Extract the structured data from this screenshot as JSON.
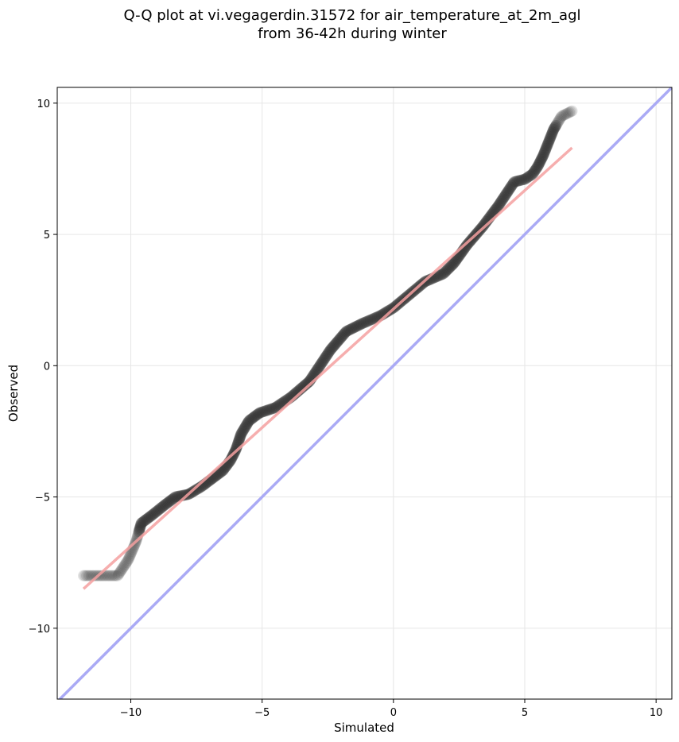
{
  "chart_data": {
    "type": "scatter",
    "title": "Q-Q plot at vi.vegagerdin.31572 for air_temperature_at_2m_agl",
    "subtitle": "from 36-42h during winter",
    "xlabel": "Simulated",
    "ylabel": "Observed",
    "xlim": [
      -12.8,
      10.6
    ],
    "ylim": [
      -12.7,
      10.6
    ],
    "xticks": [
      -10,
      -5,
      0,
      5,
      10
    ],
    "yticks": [
      -10,
      -5,
      0,
      5,
      10
    ],
    "xtick_labels": [
      "−10",
      "−5",
      "0",
      "5",
      "10"
    ],
    "ytick_labels": [
      "−10",
      "−5",
      "0",
      "5",
      "10"
    ],
    "grid": true,
    "colors": {
      "points": "#333333",
      "fit_line": "#f4a0a0",
      "identity_line": "#aaaaf5"
    },
    "fit_line": {
      "x": [
        -11.8,
        6.8
      ],
      "y": [
        -8.5,
        8.3
      ]
    },
    "identity_line": {
      "x": [
        -12.8,
        10.6
      ],
      "y": [
        -12.8,
        10.6
      ]
    },
    "points_curve": {
      "x": [
        -11.8,
        -10.5,
        -10.1,
        -9.8,
        -9.6,
        -9.2,
        -8.7,
        -8.3,
        -7.8,
        -7.3,
        -6.9,
        -6.5,
        -6.2,
        -6.0,
        -5.8,
        -5.5,
        -5.1,
        -4.5,
        -3.9,
        -3.2,
        -2.4,
        -1.8,
        -1.2,
        -0.5,
        0.0,
        0.6,
        1.2,
        1.9,
        2.3,
        2.8,
        3.4,
        4.0,
        4.6,
        5.0,
        5.3,
        5.5,
        5.7,
        5.9,
        6.1,
        6.4,
        6.8
      ],
      "y": [
        -8.0,
        -8.0,
        -7.4,
        -6.7,
        -6.0,
        -5.7,
        -5.3,
        -5.0,
        -4.9,
        -4.6,
        -4.3,
        -4.0,
        -3.6,
        -3.2,
        -2.6,
        -2.1,
        -1.8,
        -1.6,
        -1.2,
        -0.6,
        0.6,
        1.3,
        1.6,
        1.9,
        2.2,
        2.7,
        3.2,
        3.5,
        3.9,
        4.6,
        5.3,
        6.1,
        7.0,
        7.1,
        7.3,
        7.6,
        8.0,
        8.5,
        9.0,
        9.5,
        9.7
      ]
    }
  }
}
